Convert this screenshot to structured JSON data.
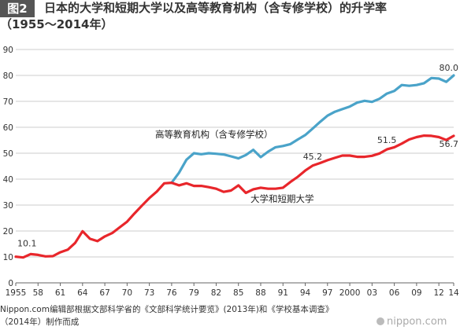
{
  "figure": {
    "badge": "图2",
    "title": "日本的大学和短期大学以及高等教育机构（含专修学校）的升学率",
    "subtitle": "（1955～2014年）"
  },
  "chart_data": {
    "type": "line",
    "ylim": [
      0,
      90
    ],
    "yticks": [
      0,
      10,
      20,
      30,
      40,
      50,
      60,
      70,
      80,
      90
    ],
    "xlim": [
      1955,
      2014
    ],
    "xticks": [
      {
        "year": 1955,
        "label": "1955"
      },
      {
        "year": 1958,
        "label": "58"
      },
      {
        "year": 1961,
        "label": "61"
      },
      {
        "year": 1964,
        "label": "64"
      },
      {
        "year": 1967,
        "label": "67"
      },
      {
        "year": 1970,
        "label": "70"
      },
      {
        "year": 1973,
        "label": "73"
      },
      {
        "year": 1976,
        "label": "76"
      },
      {
        "year": 1979,
        "label": "79"
      },
      {
        "year": 1982,
        "label": "82"
      },
      {
        "year": 1985,
        "label": "85"
      },
      {
        "year": 1988,
        "label": "88"
      },
      {
        "year": 1991,
        "label": "91"
      },
      {
        "year": 1994,
        "label": "94"
      },
      {
        "year": 1997,
        "label": "97"
      },
      {
        "year": 2000,
        "label": "2000"
      },
      {
        "year": 2003,
        "label": "03"
      },
      {
        "year": 2006,
        "label": "06"
      },
      {
        "year": 2009,
        "label": "09"
      },
      {
        "year": 2012,
        "label": "12"
      },
      {
        "year": 2014,
        "label": "14"
      }
    ],
    "grid": true,
    "series": [
      {
        "name": "高等教育机构（含专修学校）",
        "color": "#4aa3c9",
        "x": [
          1976,
          1977,
          1978,
          1979,
          1980,
          1981,
          1982,
          1983,
          1984,
          1985,
          1986,
          1987,
          1988,
          1989,
          1990,
          1991,
          1992,
          1993,
          1994,
          1995,
          1996,
          1997,
          1998,
          1999,
          2000,
          2001,
          2002,
          2003,
          2004,
          2005,
          2006,
          2007,
          2008,
          2009,
          2010,
          2011,
          2012,
          2013,
          2014
        ],
        "values": [
          38.6,
          42.5,
          47.5,
          50.0,
          49.6,
          50.0,
          49.8,
          49.5,
          48.8,
          48.0,
          49.3,
          51.3,
          48.5,
          50.6,
          52.3,
          52.8,
          53.5,
          55.3,
          57.0,
          59.5,
          62.1,
          64.5,
          66.0,
          67.0,
          68.0,
          69.5,
          70.2,
          69.8,
          71.0,
          73.0,
          74.0,
          76.3,
          76.0,
          76.3,
          77.0,
          79.0,
          78.8,
          77.5,
          80.0
        ]
      },
      {
        "name": "大学和短期大学",
        "color": "#e8262b",
        "x": [
          1955,
          1956,
          1957,
          1958,
          1959,
          1960,
          1961,
          1962,
          1963,
          1964,
          1965,
          1966,
          1967,
          1968,
          1969,
          1970,
          1971,
          1972,
          1973,
          1974,
          1975,
          1976,
          1977,
          1978,
          1979,
          1980,
          1981,
          1982,
          1983,
          1984,
          1985,
          1986,
          1987,
          1988,
          1989,
          1990,
          1991,
          1992,
          1993,
          1994,
          1995,
          1996,
          1997,
          1998,
          1999,
          2000,
          2001,
          2002,
          2003,
          2004,
          2005,
          2006,
          2007,
          2008,
          2009,
          2010,
          2011,
          2012,
          2013,
          2014
        ],
        "values": [
          10.1,
          9.8,
          11.1,
          10.8,
          10.2,
          10.3,
          11.8,
          12.8,
          15.4,
          19.9,
          17.0,
          16.1,
          17.9,
          19.2,
          21.4,
          23.6,
          26.8,
          29.8,
          32.7,
          35.2,
          38.4,
          38.6,
          37.6,
          38.4,
          37.4,
          37.4,
          36.9,
          36.3,
          35.1,
          35.6,
          37.6,
          34.7,
          36.1,
          36.7,
          36.3,
          36.3,
          36.7,
          38.9,
          40.9,
          43.3,
          45.2,
          46.2,
          47.3,
          48.2,
          49.1,
          49.1,
          48.6,
          48.6,
          49.0,
          49.9,
          51.5,
          52.3,
          53.7,
          55.3,
          56.2,
          56.8,
          56.7,
          56.2,
          55.1,
          56.7
        ]
      }
    ],
    "data_labels": [
      {
        "text": "10.1",
        "x": 1955,
        "y": 10.1,
        "series": 1
      },
      {
        "text": "45.2",
        "x": 1995,
        "y": 45.2,
        "series": 1
      },
      {
        "text": "51.5",
        "x": 2005,
        "y": 51.5,
        "series": 1
      },
      {
        "text": "56.7",
        "x": 2014,
        "y": 56.7,
        "series": 1
      },
      {
        "text": "80.0",
        "x": 2014,
        "y": 80.0,
        "series": 0
      }
    ]
  },
  "footer": {
    "source": "Nippon.com编辑部根据文部科学省的《文部科学统计要览》(2013年)和《学校基本调查》",
    "source2": "（2014年）制作而成",
    "brand": "nippon.com"
  }
}
